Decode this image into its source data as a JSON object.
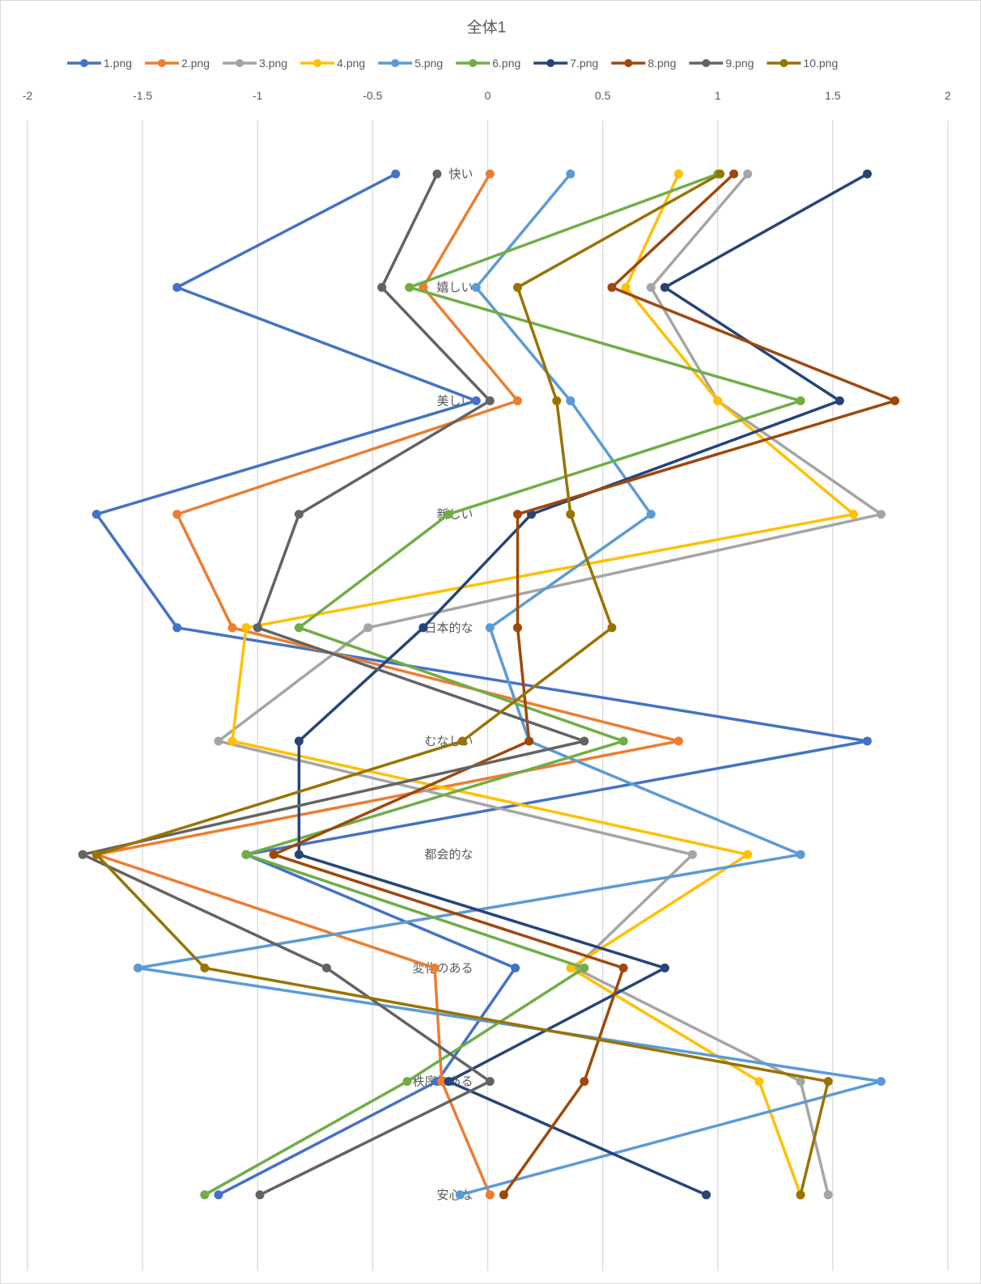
{
  "chart_data": {
    "type": "line",
    "orientation": "vertical-categories",
    "title": "全体1",
    "legend_position": "top",
    "grid": true,
    "xlim": [
      -2,
      2
    ],
    "x_ticks": [
      "-2",
      "-1.5",
      "-1",
      "-0.5",
      "0",
      "0.5",
      "1",
      "1.5",
      "2"
    ],
    "categories": [
      "快い",
      "嬉しい",
      "美しい",
      "新しい",
      "日本的な",
      "むなしい",
      "都会的な",
      "変化のある",
      "秩序のある",
      "安心な"
    ],
    "series": [
      {
        "name": "1.png",
        "color": "#4472C4",
        "values": [
          -0.4,
          -1.35,
          -0.05,
          -1.7,
          -1.35,
          1.65,
          -1.05,
          0.12,
          -0.22,
          -1.17
        ]
      },
      {
        "name": "2.png",
        "color": "#ED7D31",
        "values": [
          0.01,
          -0.28,
          0.13,
          -1.35,
          -1.11,
          0.83,
          -1.7,
          -0.23,
          -0.2,
          0.01
        ]
      },
      {
        "name": "3.png",
        "color": "#A5A5A5",
        "values": [
          1.13,
          0.71,
          1.0,
          1.71,
          -0.52,
          -1.17,
          0.89,
          0.38,
          1.36,
          1.48
        ]
      },
      {
        "name": "4.png",
        "color": "#FFC000",
        "values": [
          0.83,
          0.6,
          1.0,
          1.59,
          -1.05,
          -1.11,
          1.13,
          0.36,
          1.18,
          1.36
        ]
      },
      {
        "name": "5.png",
        "color": "#5B9BD5",
        "values": [
          0.36,
          -0.05,
          0.36,
          0.71,
          0.01,
          0.18,
          1.36,
          -1.52,
          1.71,
          -0.12
        ]
      },
      {
        "name": "6.png",
        "color": "#70AD47",
        "values": [
          1.0,
          -0.34,
          1.36,
          -0.17,
          -0.82,
          0.59,
          -1.05,
          0.42,
          -0.35,
          -1.23
        ]
      },
      {
        "name": "7.png",
        "color": "#264478",
        "values": [
          1.65,
          0.77,
          1.53,
          0.19,
          -0.28,
          -0.82,
          -0.82,
          0.77,
          -0.17,
          0.95
        ]
      },
      {
        "name": "8.png",
        "color": "#9E480E",
        "values": [
          1.07,
          0.54,
          1.77,
          0.13,
          0.13,
          0.18,
          -0.93,
          0.59,
          0.42,
          0.07
        ]
      },
      {
        "name": "9.png",
        "color": "#636363",
        "values": [
          -0.22,
          -0.46,
          0.01,
          -0.82,
          -1.0,
          0.42,
          -1.76,
          -0.7,
          0.01,
          -0.99
        ]
      },
      {
        "name": "10.png",
        "color": "#997300",
        "values": [
          1.01,
          0.13,
          0.3,
          0.36,
          0.54,
          -0.11,
          -1.7,
          -1.23,
          1.48,
          1.36
        ]
      }
    ]
  }
}
